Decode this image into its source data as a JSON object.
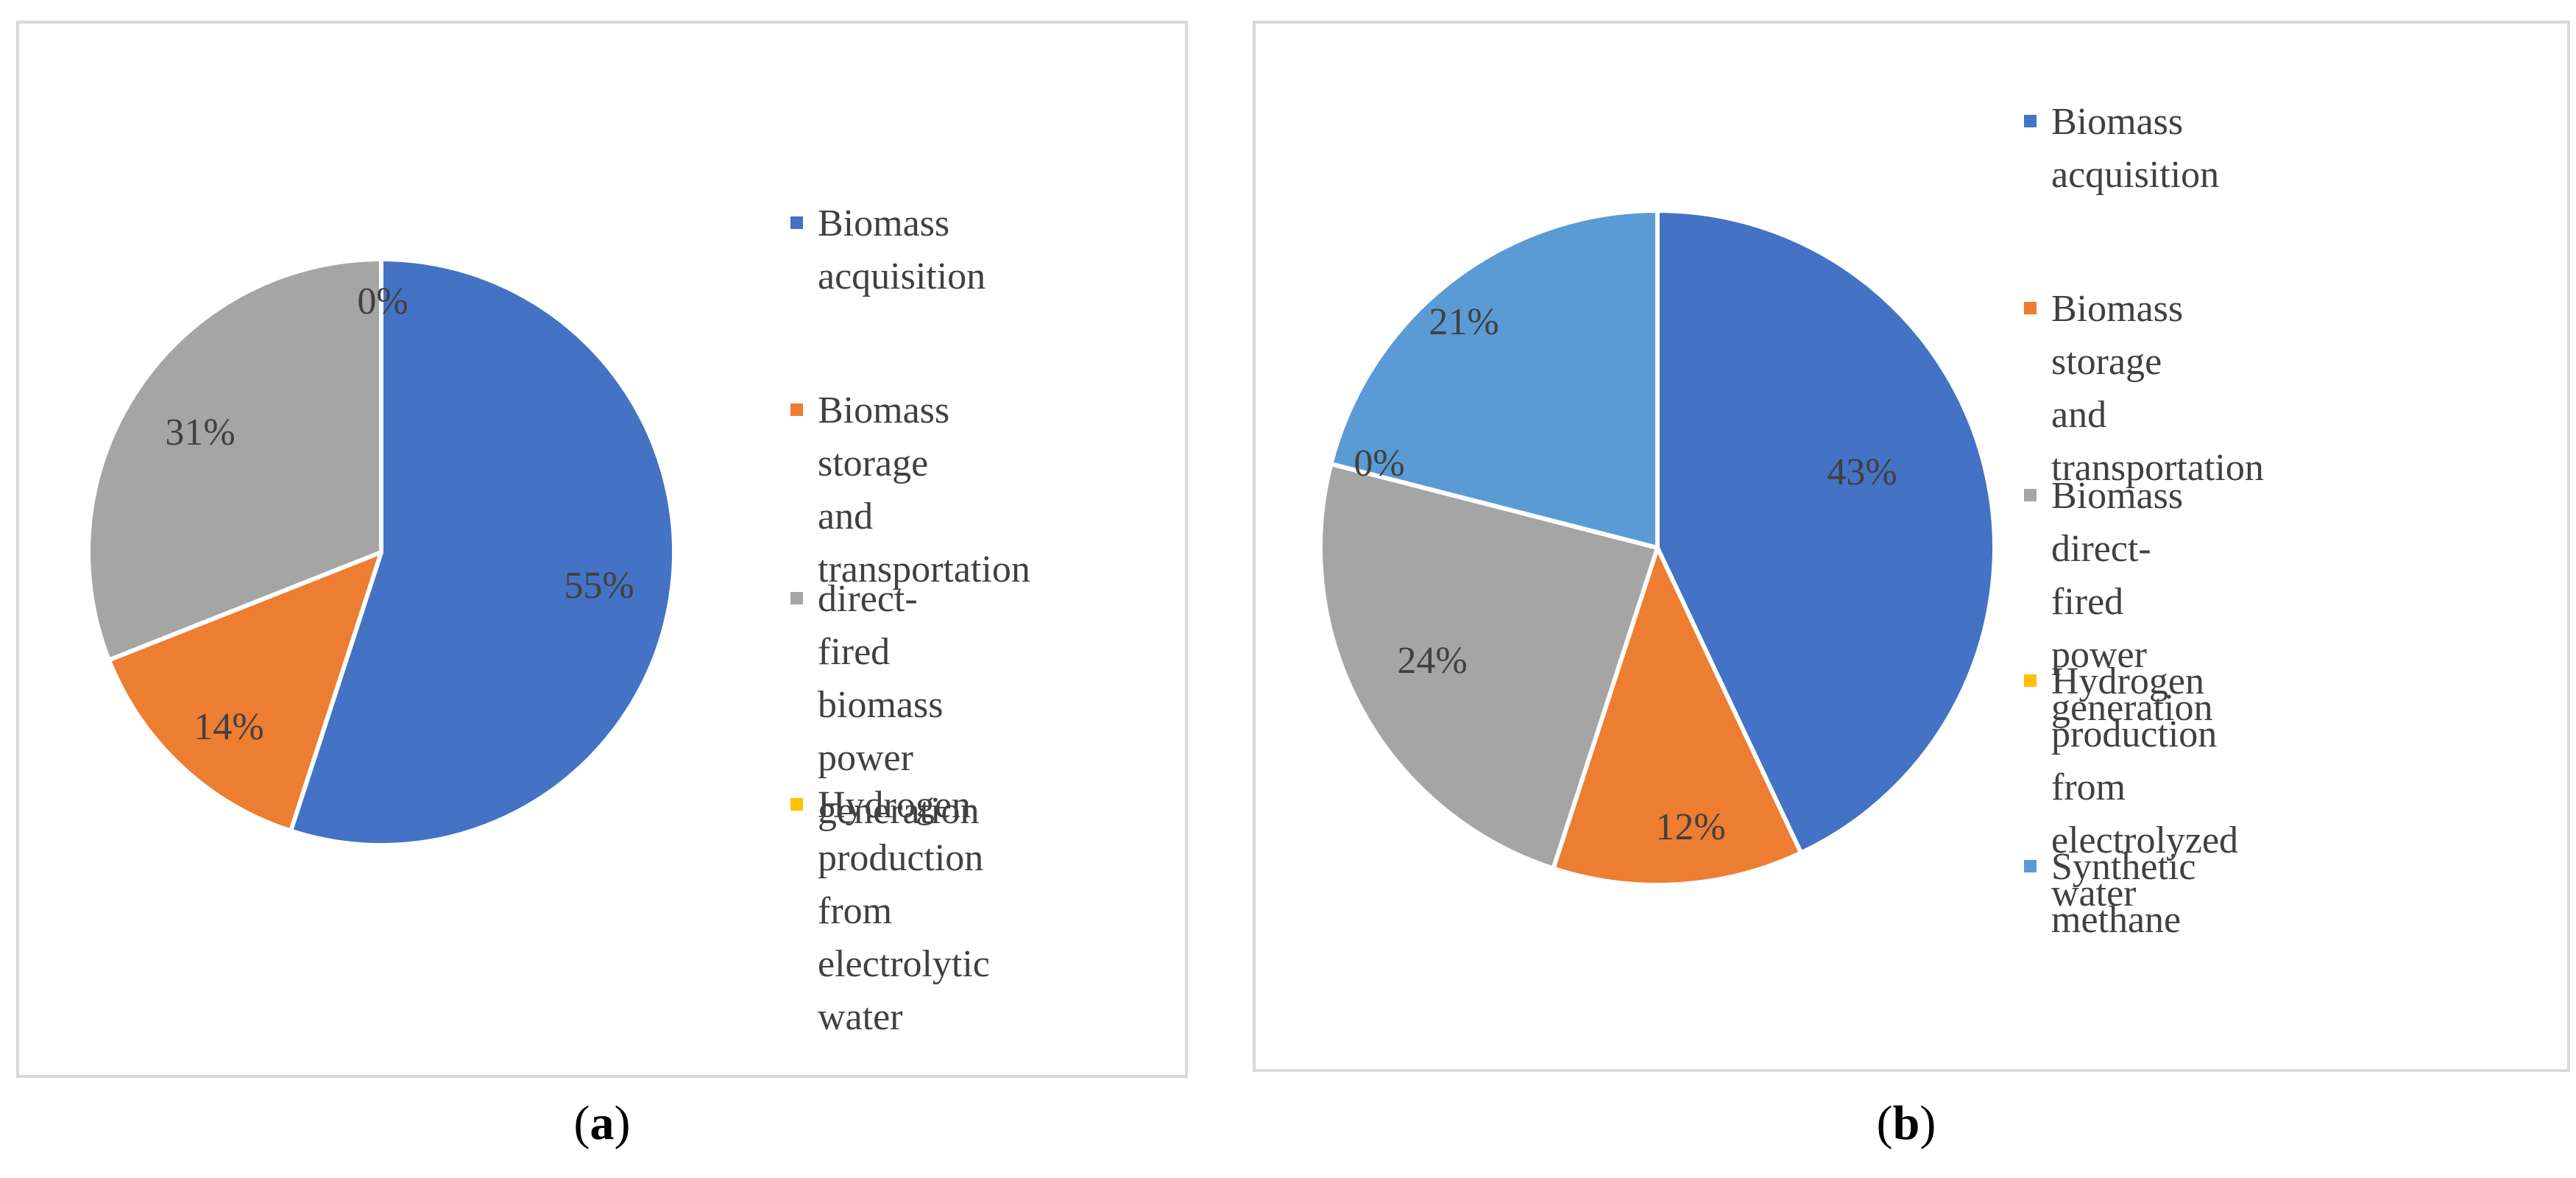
{
  "chart_data": [
    {
      "type": "pie",
      "caption_letter": "a",
      "slices": [
        {
          "label": "Biomass\nacquisition",
          "value": 55,
          "data_label": "55%",
          "color": "#4472c4"
        },
        {
          "label": "Biomass storage\nand transportation",
          "value": 14,
          "data_label": "14%",
          "color": "#ed7d31"
        },
        {
          "label": "direct-fired\nbiomass power\ngeneration",
          "value": 31,
          "data_label": "31%",
          "color": "#a5a5a5"
        },
        {
          "label": "Hydrogen\nproduction from\nelectrolytic water",
          "value": 0,
          "data_label": "0%",
          "color": "#ffc000"
        }
      ],
      "legend_position": "right"
    },
    {
      "type": "pie",
      "caption_letter": "b",
      "slices": [
        {
          "label": "Biomass acquisition",
          "value": 43,
          "data_label": "43%",
          "color": "#4472c4"
        },
        {
          "label": "Biomass storage\nand transportation",
          "value": 12,
          "data_label": "12%",
          "color": "#ed7d31"
        },
        {
          "label": "Biomass direct-fired\npower generation",
          "value": 24,
          "data_label": "24%",
          "color": "#a5a5a5"
        },
        {
          "label": "Hydrogen\nproduction from\nelectrolyzed water",
          "value": 0,
          "data_label": "0%",
          "color": "#ffc000"
        },
        {
          "label": "Synthetic methane",
          "value": 21,
          "data_label": "21%",
          "color": "#5b9bd5"
        }
      ],
      "legend_position": "right"
    }
  ]
}
